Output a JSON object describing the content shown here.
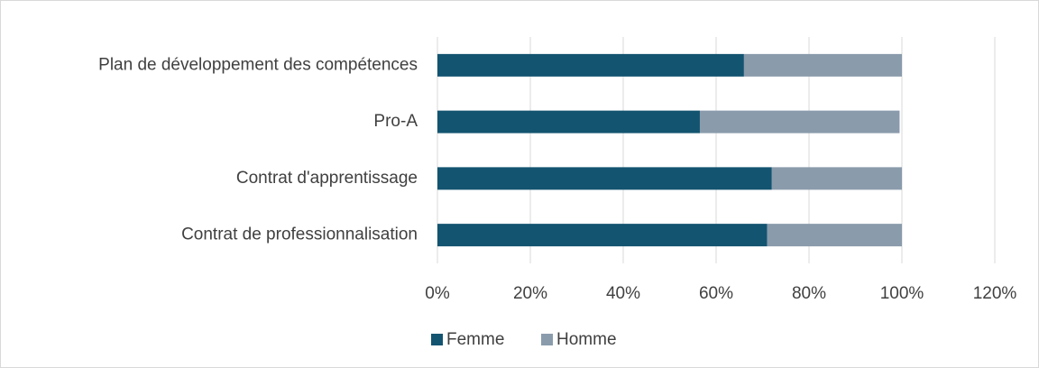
{
  "chart_data": {
    "type": "stacked_barh",
    "categories": [
      "Plan de développement des compétences",
      "Pro-A",
      "Contrat d'apprentissage",
      "Contrat de professionnalisation"
    ],
    "series": [
      {
        "name": "Femme",
        "color": "#135470",
        "values": [
          66,
          56.5,
          72,
          71
        ]
      },
      {
        "name": "Homme",
        "color": "#8a9bac",
        "values": [
          34,
          43,
          28,
          29
        ]
      }
    ],
    "xlim": [
      0,
      120
    ],
    "xticks": [
      {
        "value": 0,
        "label": "0%"
      },
      {
        "value": 20,
        "label": "20%"
      },
      {
        "value": 40,
        "label": "40%"
      },
      {
        "value": 60,
        "label": "60%"
      },
      {
        "value": 80,
        "label": "80%"
      },
      {
        "value": 100,
        "label": "100%"
      },
      {
        "value": 120,
        "label": "120%"
      }
    ],
    "grid": true,
    "legend": "bottom"
  }
}
